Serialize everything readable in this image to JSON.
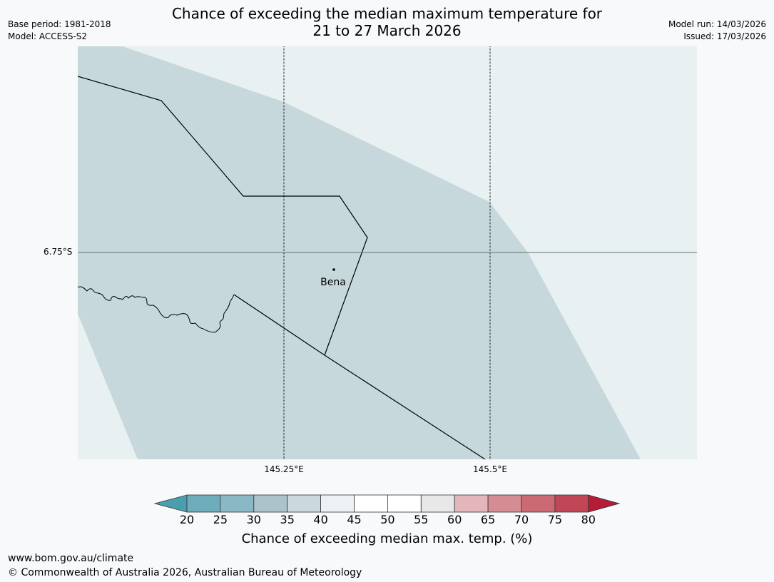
{
  "title": {
    "line1": "Chance of exceeding the median maximum temperature for",
    "line2": "21 to 27 March 2026"
  },
  "meta_left": {
    "base_period": "Base period: 1981-2018",
    "model": "Model: ACCESS-S2"
  },
  "meta_right": {
    "model_run": "Model run: 14/03/2026",
    "issued": "Issued: 17/03/2026"
  },
  "map": {
    "latitude_labels": [
      "6.75°S"
    ],
    "longitude_labels": [
      "145.25°E",
      "145.5°E"
    ],
    "place": {
      "name": "Bena"
    },
    "fill_colors": {
      "band_35_40": "#c6d8dc",
      "band_40_45": "#e9f0f1",
      "gridline": "#5f7470",
      "boundary": "#000000"
    }
  },
  "colorbar": {
    "title": "Chance of exceeding median max. temp. (%)",
    "ticks": [
      "20",
      "25",
      "30",
      "35",
      "40",
      "45",
      "50",
      "55",
      "60",
      "65",
      "70",
      "75",
      "80"
    ],
    "below_color": "#4a9fae",
    "above_color": "#b41c38",
    "segment_colors": [
      "#6dacb9",
      "#8ab8c4",
      "#abc4ca",
      "#c9d9dd",
      "#ecf2f3",
      "#ffffff",
      "#ffffff",
      "#e8e8e8",
      "#e2b6ba",
      "#d68c93",
      "#cc6a74",
      "#c14656"
    ]
  },
  "footer": {
    "url": "www.bom.gov.au/climate",
    "copyright": "© Commonwealth of Australia 2026, Australian Bureau of Meteorology"
  }
}
